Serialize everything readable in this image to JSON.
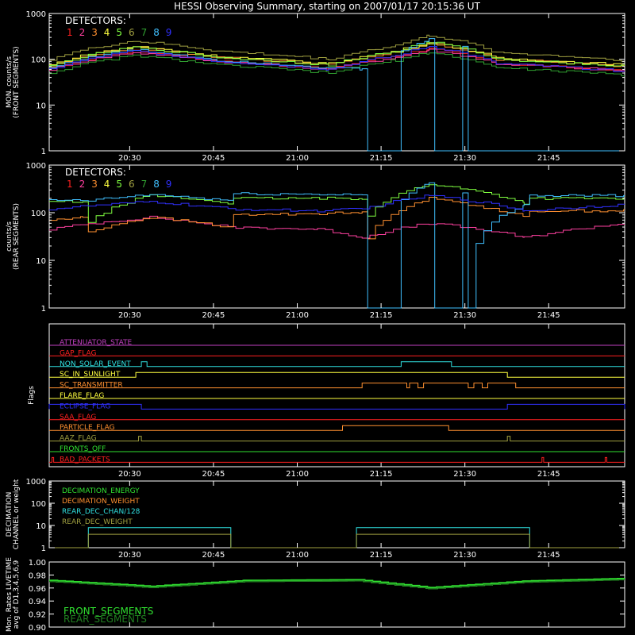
{
  "title": "HESSI Observing Summary, starting on 2007/01/17 20:15:36 UT",
  "chart_data": [
    {
      "type": "line",
      "name": "front",
      "ylabel": [
        "MON. counts/s",
        "(FRONT SEGMENTS)"
      ],
      "yscale": "log",
      "ylim": [
        1,
        1000
      ],
      "ytick_labels": [
        "1",
        "10",
        "100",
        "1000"
      ],
      "xticks": [
        "20:30",
        "20:45",
        "21:00",
        "21:15",
        "21:30",
        "21:45"
      ],
      "xrange_minutes": [
        0,
        103
      ],
      "legend_title": "DETECTORS:",
      "legend": [
        "1",
        "2",
        "3",
        "4",
        "5",
        "6",
        "7",
        "8",
        "9"
      ],
      "series": [
        {
          "name": "1",
          "color": "#ff2020",
          "values": [
            [
              0,
              60
            ],
            [
              15,
              150
            ],
            [
              30,
              90
            ],
            [
              50,
              60
            ],
            [
              62,
              120
            ],
            [
              68,
              170
            ],
            [
              80,
              80
            ],
            [
              103,
              55
            ]
          ]
        },
        {
          "name": "2",
          "color": "#ff40a0",
          "values": [
            [
              0,
              60
            ],
            [
              15,
              140
            ],
            [
              30,
              90
            ],
            [
              50,
              60
            ],
            [
              62,
              110
            ],
            [
              68,
              160
            ],
            [
              80,
              80
            ],
            [
              103,
              55
            ]
          ]
        },
        {
          "name": "3",
          "color": "#ff9030",
          "values": [
            [
              0,
              70
            ],
            [
              15,
              180
            ],
            [
              30,
              110
            ],
            [
              50,
              75
            ],
            [
              62,
              140
            ],
            [
              68,
              220
            ],
            [
              80,
              100
            ],
            [
              103,
              70
            ]
          ]
        },
        {
          "name": "4",
          "color": "#ffff40",
          "values": [
            [
              0,
              75
            ],
            [
              15,
              190
            ],
            [
              30,
              115
            ],
            [
              50,
              80
            ],
            [
              62,
              150
            ],
            [
              68,
              230
            ],
            [
              80,
              105
            ],
            [
              103,
              75
            ]
          ]
        },
        {
          "name": "5",
          "color": "#80ff40",
          "values": [
            [
              0,
              70
            ],
            [
              15,
              180
            ],
            [
              30,
              110
            ],
            [
              50,
              75
            ],
            [
              62,
              150
            ],
            [
              68,
              240
            ],
            [
              80,
              100
            ],
            [
              103,
              70
            ]
          ]
        },
        {
          "name": "6",
          "color": "#a0a040",
          "values": [
            [
              0,
              100
            ],
            [
              15,
              250
            ],
            [
              30,
              150
            ],
            [
              50,
              100
            ],
            [
              62,
              200
            ],
            [
              68,
              330
            ],
            [
              80,
              140
            ],
            [
              103,
              95
            ]
          ]
        },
        {
          "name": "7",
          "color": "#30a030",
          "values": [
            [
              0,
              50
            ],
            [
              15,
              120
            ],
            [
              30,
              75
            ],
            [
              50,
              50
            ],
            [
              62,
              95
            ],
            [
              68,
              140
            ],
            [
              80,
              65
            ],
            [
              103,
              45
            ]
          ]
        },
        {
          "name": "8",
          "color": "#40c0ff",
          "values": [
            [
              0,
              65
            ],
            [
              15,
              160
            ],
            [
              30,
              95
            ],
            [
              50,
              65
            ],
            [
              56,
              60
            ],
            [
              57,
              1
            ],
            [
              62,
              1
            ],
            [
              63,
              150
            ],
            [
              68,
              270
            ],
            [
              69,
              1
            ],
            [
              73,
              1
            ],
            [
              74,
              200
            ],
            [
              75,
              1
            ],
            [
              103,
              1
            ]
          ]
        },
        {
          "name": "9",
          "color": "#3030ff",
          "values": [
            [
              0,
              60
            ],
            [
              15,
              150
            ],
            [
              30,
              90
            ],
            [
              50,
              60
            ],
            [
              62,
              120
            ],
            [
              68,
              190
            ],
            [
              80,
              80
            ],
            [
              103,
              55
            ]
          ]
        }
      ]
    },
    {
      "type": "line",
      "name": "rear",
      "ylabel": [
        "counts/s",
        "(REAR SEGMENTS)"
      ],
      "yscale": "log",
      "ylim": [
        1,
        1000
      ],
      "ytick_labels": [
        "1",
        "10",
        "100",
        "1000"
      ],
      "xticks": [
        "20:30",
        "20:45",
        "21:00",
        "21:15",
        "21:30",
        "21:45"
      ],
      "xrange_minutes": [
        0,
        103
      ],
      "legend_title": "DETECTORS:",
      "legend": [
        "1",
        "2",
        "3",
        "4",
        "5",
        "6",
        "7",
        "8",
        "9"
      ],
      "series": [
        {
          "name": "2",
          "color": "#ff40a0",
          "values": [
            [
              0,
              45
            ],
            [
              18,
              80
            ],
            [
              32,
              50
            ],
            [
              48,
              45
            ],
            [
              56,
              30
            ],
            [
              68,
              60
            ],
            [
              85,
              30
            ],
            [
              103,
              60
            ]
          ]
        },
        {
          "name": "3",
          "color": "#ff9030",
          "values": [
            [
              0,
              70
            ],
            [
              6,
              80
            ],
            [
              7,
              40
            ],
            [
              18,
              80
            ],
            [
              32,
              50
            ],
            [
              33,
              90
            ],
            [
              56,
              100
            ],
            [
              57,
              30
            ],
            [
              68,
              200
            ],
            [
              85,
              80
            ],
            [
              86,
              110
            ],
            [
              103,
              110
            ]
          ]
        },
        {
          "name": "5",
          "color": "#80ff40",
          "values": [
            [
              0,
              170
            ],
            [
              6,
              170
            ],
            [
              7,
              60
            ],
            [
              18,
              230
            ],
            [
              32,
              160
            ],
            [
              33,
              200
            ],
            [
              56,
              200
            ],
            [
              57,
              90
            ],
            [
              68,
              400
            ],
            [
              85,
              160
            ],
            [
              86,
              200
            ],
            [
              103,
              200
            ]
          ]
        },
        {
          "name": "8",
          "color": "#40c0ff",
          "values": [
            [
              0,
              180
            ],
            [
              6,
              180
            ],
            [
              7,
              180
            ],
            [
              18,
              240
            ],
            [
              32,
              180
            ],
            [
              33,
              250
            ],
            [
              56,
              240
            ],
            [
              57,
              1
            ],
            [
              62,
              1
            ],
            [
              63,
              200
            ],
            [
              68,
              420
            ],
            [
              69,
              1
            ],
            [
              73,
              1
            ],
            [
              74,
              250
            ],
            [
              75,
              1
            ],
            [
              85,
              150
            ],
            [
              86,
              230
            ],
            [
              103,
              230
            ]
          ]
        },
        {
          "name": "9",
          "color": "#3030ff",
          "values": [
            [
              0,
              120
            ],
            [
              18,
              170
            ],
            [
              32,
              120
            ],
            [
              48,
              110
            ],
            [
              56,
              120
            ],
            [
              68,
              230
            ],
            [
              85,
              110
            ],
            [
              103,
              150
            ]
          ]
        }
      ]
    },
    {
      "type": "flags",
      "ylabel": "Flags",
      "xticks": [
        "20:30",
        "20:45",
        "21:00",
        "21:15",
        "21:30",
        "21:45"
      ],
      "flags": [
        {
          "label": "ATTENUATOR_STATE",
          "color": "#c040c0",
          "on": []
        },
        {
          "label": "GAP_FLAG",
          "color": "#ff2020",
          "on": []
        },
        {
          "label": "NON_SOLAR_EVENT",
          "color": "#30e0e0",
          "on": [
            [
              16.5,
              17.5
            ],
            [
              63,
              72
            ]
          ]
        },
        {
          "label": "SC_IN_SUNLIGHT",
          "color": "#ffff40",
          "on": [
            [
              15.5,
              82
            ]
          ]
        },
        {
          "label": "SC_TRANSMITTER",
          "color": "#ff9030",
          "on": [
            [
              56,
              64
            ],
            [
              64.5,
              66
            ],
            [
              67,
              75
            ],
            [
              76,
              77.5
            ],
            [
              78.5,
              83.5
            ]
          ]
        },
        {
          "label": "FLARE_FLAG",
          "color": "#ffff40",
          "on": []
        },
        {
          "label": "ECLIPSE_FLAG",
          "color": "#3030ff",
          "on": [
            [
              0,
              16.5
            ],
            [
              82,
              103
            ]
          ]
        },
        {
          "label": "SAA_FLAG",
          "color": "#ff2020",
          "on": []
        },
        {
          "label": "PARTICLE_FLAG",
          "color": "#ff9030",
          "on": [
            [
              52.5,
              71.5
            ]
          ]
        },
        {
          "label": "AAZ_FLAG",
          "color": "#a0a040",
          "on": [
            [
              16,
              16.5
            ],
            [
              82,
              82.5
            ]
          ]
        },
        {
          "label": "FRONTS_OFF",
          "color": "#30e030",
          "on": []
        },
        {
          "label": "BAD_PACKETS",
          "color": "#ff2020",
          "on": [
            [
              0.5,
              0.8
            ],
            [
              88.2,
              88.5
            ],
            [
              99.5,
              99.8
            ]
          ]
        }
      ]
    },
    {
      "type": "line",
      "name": "decimation",
      "ylabel": [
        "DECIMATION",
        "CHANNEL or weight"
      ],
      "yscale": "log",
      "ylim": [
        1,
        1000
      ],
      "ytick_labels": [
        "1",
        "10",
        "100",
        "1000"
      ],
      "xticks": [
        "20:30",
        "20:45",
        "21:00",
        "21:15",
        "21:30",
        "21:45"
      ],
      "xrange_minutes": [
        0,
        103
      ],
      "legend": [
        {
          "label": "DECIMATION_ENERGY",
          "color": "#30e030"
        },
        {
          "label": "DECIMATION_WEIGHT",
          "color": "#ff9030"
        },
        {
          "label": "REAR_DEC_CHAN/128",
          "color": "#30e0e0"
        },
        {
          "label": "REAR_DEC_WEIGHT",
          "color": "#a0a040"
        }
      ],
      "series": [
        {
          "name": "REAR_DEC_CHAN/128",
          "color": "#30e0e0",
          "values": [
            [
              0,
              1
            ],
            [
              7,
              1
            ],
            [
              7,
              8
            ],
            [
              32.5,
              8
            ],
            [
              32.5,
              1
            ],
            [
              55,
              1
            ],
            [
              55,
              8
            ],
            [
              86,
              8
            ],
            [
              86,
              1
            ],
            [
              103,
              1
            ]
          ]
        },
        {
          "name": "REAR_DEC_WEIGHT",
          "color": "#a0a040",
          "values": [
            [
              0,
              1
            ],
            [
              7,
              1
            ],
            [
              7,
              4
            ],
            [
              32.5,
              4
            ],
            [
              32.5,
              1
            ],
            [
              55,
              1
            ],
            [
              55,
              4
            ],
            [
              86,
              4
            ],
            [
              86,
              1
            ],
            [
              103,
              1
            ]
          ]
        }
      ]
    },
    {
      "type": "line",
      "name": "livetime",
      "ylabel": [
        "Mon. Rates LIVETIME",
        "avg of D1,3,4,5,6,9"
      ],
      "ylim": [
        0.9,
        1.0
      ],
      "ytick_labels": [
        "0.90",
        "0.92",
        "0.94",
        "0.96",
        "0.98",
        "1.00"
      ],
      "legend": [
        {
          "label": "FRONT_SEGMENTS",
          "color": "#30e030"
        },
        {
          "label": "REAR_SEGMENTS",
          "color": "#208020"
        }
      ],
      "series": [
        {
          "name": "FRONT_SEGMENTS",
          "color": "#30e030",
          "values": [
            [
              0,
              0.971
            ],
            [
              18,
              0.962
            ],
            [
              35,
              0.971
            ],
            [
              55,
              0.972
            ],
            [
              68,
              0.96
            ],
            [
              85,
              0.97
            ],
            [
              103,
              0.974
            ]
          ]
        },
        {
          "name": "REAR_SEGMENTS",
          "color": "#208020",
          "values": [
            [
              0,
              0.97
            ],
            [
              18,
              0.961
            ],
            [
              35,
              0.97
            ],
            [
              55,
              0.971
            ],
            [
              68,
              0.959
            ],
            [
              85,
              0.969
            ],
            [
              103,
              0.973
            ]
          ]
        }
      ]
    }
  ]
}
